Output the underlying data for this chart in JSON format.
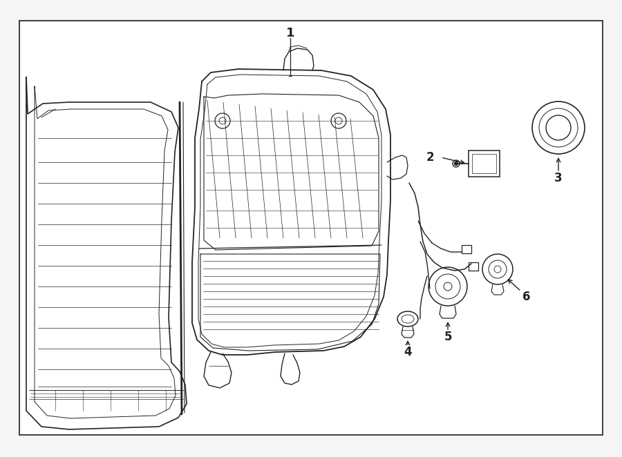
{
  "background_color": "#f5f5f5",
  "border_color": "#444444",
  "line_color": "#222222",
  "label_color": "#000000",
  "fig_width": 9.0,
  "fig_height": 6.62,
  "dpi": 100,
  "border_lw": 1.5,
  "lw": 1.0
}
